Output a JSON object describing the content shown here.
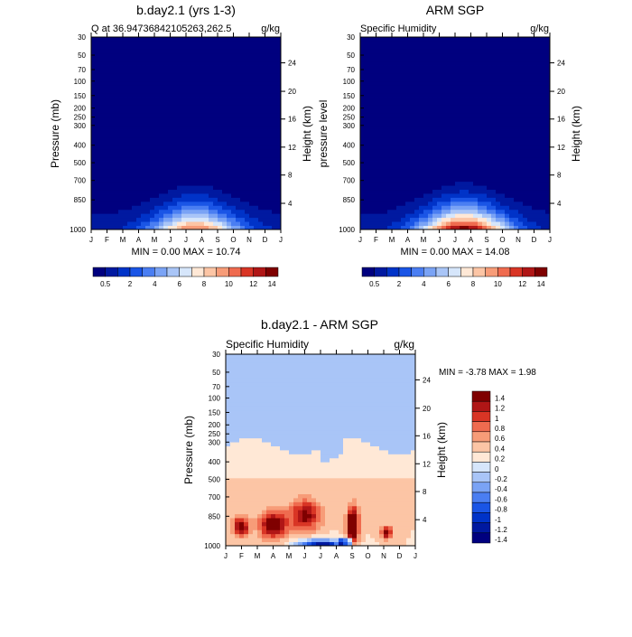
{
  "months": [
    "J",
    "F",
    "M",
    "A",
    "M",
    "J",
    "J",
    "A",
    "S",
    "O",
    "N",
    "D",
    "J"
  ],
  "pressure_ticks": [
    "30",
    "50",
    "70",
    "100",
    "150",
    "200",
    "250",
    "300",
    "400",
    "500",
    "700",
    "850",
    "1000"
  ],
  "height_ticks": [
    "24",
    "20",
    "16",
    "12",
    "8",
    "4"
  ],
  "colors": {
    "levels_abs": [
      "#00007f",
      "#0019a0",
      "#0033c8",
      "#1a55e6",
      "#4a7ef2",
      "#7aa3f5",
      "#a9c5f7",
      "#d6e6fb",
      "#ffe8d6",
      "#fcc5a5",
      "#f79c78",
      "#ef6b4f",
      "#d93525",
      "#b01616",
      "#7f0000"
    ],
    "levels_diff": [
      "#00007f",
      "#0019a0",
      "#0033c8",
      "#1a55e6",
      "#4a7ef2",
      "#7aa3f5",
      "#a9c5f7",
      "#d6e6fb",
      "#ffe8d6",
      "#fcc5a5",
      "#f79c78",
      "#ef6b4f",
      "#d93525",
      "#b01616",
      "#7f0000"
    ]
  },
  "panel1": {
    "title": "b.day2.1 (yrs 1-3)",
    "left_label": "Q at 36.94736842105263,262.5",
    "right_label": "g/kg",
    "y_label": "Pressure (mb)",
    "y2_label": "Height (km)",
    "min_max": "MIN =   0.00 MAX =  10.74"
  },
  "panel2": {
    "title": "ARM SGP",
    "left_label": "Specific Humidity",
    "right_label": "g/kg",
    "y_label": "pressure level",
    "y2_label": "Height (km)",
    "min_max": "MIN =   0.00 MAX =  14.08"
  },
  "panel3": {
    "title": "b.day2.1 - ARM SGP",
    "left_label": "Specific Humidity",
    "right_label": "g/kg",
    "y_label": "Pressure (mb)",
    "y2_label": "Height (km)",
    "min_max": "MIN =  -3.78 MAX =   1.98"
  },
  "colorbar_abs_labels": [
    "0.5",
    "2",
    "4",
    "6",
    "8",
    "10",
    "12",
    "14"
  ],
  "colorbar_diff_labels": [
    "1.4",
    "1.2",
    "1",
    "0.8",
    "0.6",
    "0.4",
    "0.2",
    "0",
    "-0.2",
    "-0.4",
    "-0.6",
    "-0.8",
    "-1",
    "-1.2",
    "-1.4"
  ],
  "chart_data": [
    {
      "type": "heatmap",
      "title": "b.day2.1 (yrs 1-3)",
      "xlabel": "",
      "ylabel": "Pressure (mb)",
      "x": [
        "J",
        "F",
        "M",
        "A",
        "M",
        "J",
        "J",
        "A",
        "S",
        "O",
        "N",
        "D",
        "J"
      ],
      "y_pressure_mb": [
        1000,
        850,
        700,
        500,
        400,
        300,
        250,
        200,
        150,
        100,
        70,
        50,
        30
      ],
      "units": "g/kg",
      "min": 0.0,
      "max": 10.74,
      "levels": [
        0.5,
        1,
        2,
        3,
        4,
        5,
        6,
        7,
        8,
        9,
        10,
        11,
        12,
        13,
        14
      ]
    },
    {
      "type": "heatmap",
      "title": "ARM SGP",
      "ylabel": "pressure level",
      "x": [
        "J",
        "F",
        "M",
        "A",
        "M",
        "J",
        "J",
        "A",
        "S",
        "O",
        "N",
        "D",
        "J"
      ],
      "y_pressure_mb": [
        1000,
        850,
        700,
        500,
        400,
        300,
        250,
        200,
        150,
        100,
        70,
        50,
        30
      ],
      "units": "g/kg",
      "min": 0.0,
      "max": 14.08,
      "levels": [
        0.5,
        1,
        2,
        3,
        4,
        5,
        6,
        7,
        8,
        9,
        10,
        11,
        12,
        13,
        14
      ]
    },
    {
      "type": "heatmap",
      "title": "b.day2.1 - ARM SGP",
      "ylabel": "Pressure (mb)",
      "x": [
        "J",
        "F",
        "M",
        "A",
        "M",
        "J",
        "J",
        "A",
        "S",
        "O",
        "N",
        "D",
        "J"
      ],
      "y_pressure_mb": [
        1000,
        850,
        700,
        500,
        400,
        300,
        250,
        200,
        150,
        100,
        70,
        50,
        30
      ],
      "units": "g/kg",
      "min": -3.78,
      "max": 1.98,
      "levels": [
        -1.4,
        -1.2,
        -1,
        -0.8,
        -0.6,
        -0.4,
        -0.2,
        0,
        0.2,
        0.4,
        0.6,
        0.8,
        1,
        1.2,
        1.4
      ]
    }
  ]
}
